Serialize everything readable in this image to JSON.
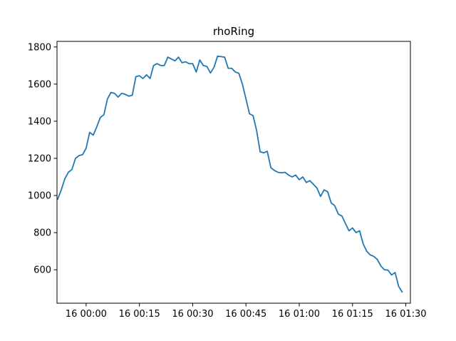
{
  "chart_data": {
    "type": "line",
    "title": "rhoRing",
    "xlabel": "",
    "ylabel": "",
    "x_unit": "minutes relative to 16 00:00",
    "xlim": [
      -8.2,
      91.3
    ],
    "ylim": [
      420,
      1830
    ],
    "x_ticks": [
      {
        "value": 0,
        "label": "16 00:00"
      },
      {
        "value": 15,
        "label": "16 00:15"
      },
      {
        "value": 30,
        "label": "16 00:30"
      },
      {
        "value": 45,
        "label": "16 00:45"
      },
      {
        "value": 60,
        "label": "16 01:00"
      },
      {
        "value": 75,
        "label": "16 01:15"
      },
      {
        "value": 90,
        "label": "16 01:30"
      }
    ],
    "y_ticks": [
      600,
      800,
      1000,
      1200,
      1400,
      1600,
      1800
    ],
    "grid": false,
    "color": "#1f77b4",
    "series": [
      {
        "x": [
          -8,
          -7,
          -6,
          -5,
          -4,
          -3,
          -2,
          -1,
          0,
          1,
          2,
          3,
          4,
          5,
          6,
          7,
          8,
          9,
          10,
          11,
          12,
          13,
          14,
          15,
          16,
          17,
          18,
          19,
          20,
          21,
          22,
          23,
          24,
          25,
          26,
          27,
          28,
          29,
          30,
          31,
          32,
          33,
          34,
          35,
          36,
          37,
          38,
          39,
          40,
          41,
          42,
          43,
          44,
          45,
          46,
          47,
          48,
          49,
          50,
          51,
          52,
          53,
          54,
          55,
          56,
          57,
          58,
          59,
          60,
          61,
          62,
          63,
          64,
          65,
          66,
          67,
          68,
          69,
          70,
          71,
          72,
          73,
          74,
          75,
          76,
          77,
          78,
          79,
          80,
          81,
          82,
          83,
          84,
          85,
          86,
          87,
          88,
          89
        ],
        "values": [
          980,
          1030,
          1090,
          1125,
          1140,
          1200,
          1215,
          1220,
          1255,
          1340,
          1325,
          1370,
          1420,
          1435,
          1520,
          1555,
          1550,
          1530,
          1550,
          1545,
          1535,
          1540,
          1640,
          1645,
          1630,
          1650,
          1630,
          1700,
          1710,
          1700,
          1700,
          1745,
          1735,
          1725,
          1745,
          1715,
          1720,
          1710,
          1710,
          1665,
          1730,
          1700,
          1695,
          1660,
          1690,
          1750,
          1748,
          1745,
          1685,
          1685,
          1665,
          1658,
          1600,
          1520,
          1440,
          1430,
          1350,
          1235,
          1230,
          1238,
          1150,
          1135,
          1125,
          1122,
          1125,
          1110,
          1100,
          1110,
          1085,
          1100,
          1070,
          1080,
          1060,
          1040,
          995,
          1030,
          1020,
          960,
          945,
          900,
          890,
          850,
          810,
          825,
          800,
          810,
          740,
          700,
          680,
          672,
          655,
          620,
          600,
          598,
          572,
          585,
          510,
          480
        ]
      }
    ]
  }
}
